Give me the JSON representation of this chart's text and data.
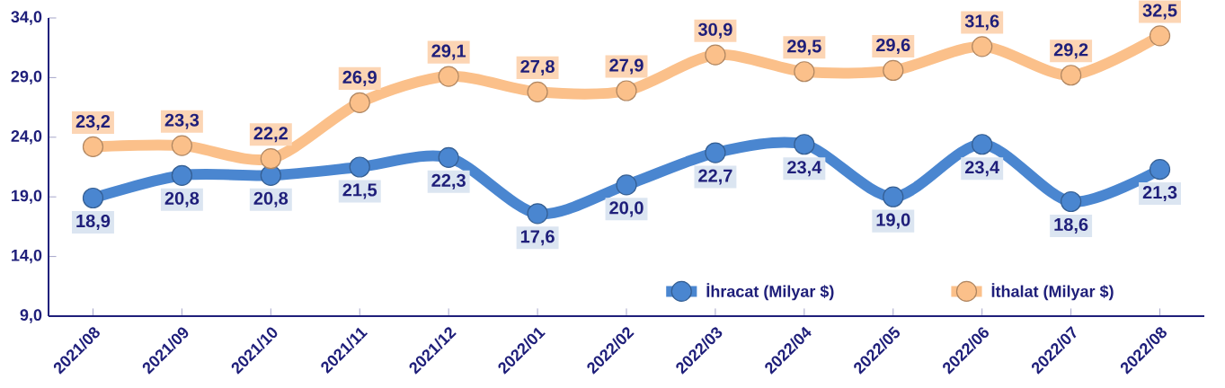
{
  "chart_data": {
    "type": "line",
    "categories": [
      "2021/08",
      "2021/09",
      "2021/10",
      "2021/11",
      "2021/12",
      "2022/01",
      "2022/02",
      "2022/03",
      "2022/04",
      "2022/05",
      "2022/06",
      "2022/07",
      "2022/08"
    ],
    "series": [
      {
        "name": "İhracat (Milyar $)",
        "color": "#4a86d0",
        "values": [
          18.9,
          20.8,
          20.8,
          21.5,
          22.3,
          17.6,
          20.0,
          22.7,
          23.4,
          19.0,
          23.4,
          18.6,
          21.3
        ],
        "value_labels": [
          "18,9",
          "20,8",
          "20,8",
          "21,5",
          "22,3",
          "17,6",
          "20,0",
          "22,7",
          "23,4",
          "19,0",
          "23,4",
          "18,6",
          "21,3"
        ]
      },
      {
        "name": "İthalat (Milyar $)",
        "color": "#fbc08a",
        "values": [
          23.2,
          23.3,
          22.2,
          26.9,
          29.1,
          27.8,
          27.9,
          30.9,
          29.5,
          29.6,
          31.6,
          29.2,
          32.5
        ],
        "value_labels": [
          "23,2",
          "23,3",
          "22,2",
          "26,9",
          "29,1",
          "27,8",
          "27,9",
          "30,9",
          "29,5",
          "29,6",
          "31,6",
          "29,2",
          "32,5"
        ]
      }
    ],
    "ylim": [
      9,
      34
    ],
    "yticks": [
      {
        "value": 9,
        "label": "9,0"
      },
      {
        "value": 14,
        "label": "14,0"
      },
      {
        "value": 19,
        "label": "19,0"
      },
      {
        "value": 24,
        "label": "24,0"
      },
      {
        "value": 29,
        "label": "29,0"
      },
      {
        "value": 34,
        "label": "34,0"
      }
    ],
    "legend": "bottom right",
    "marker": "circle",
    "grid": false
  }
}
